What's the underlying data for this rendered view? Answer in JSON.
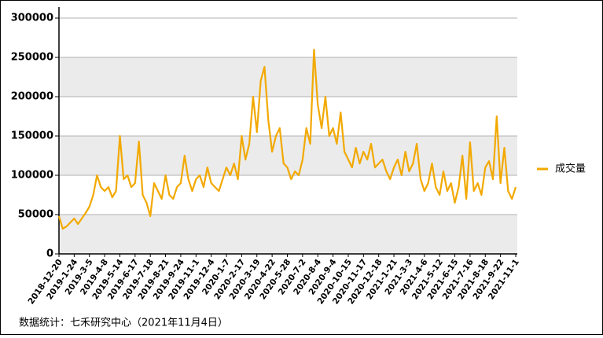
{
  "chart_data": {
    "type": "line",
    "categories": [
      "2018-12-20",
      null,
      null,
      null,
      "2019-1-24",
      null,
      null,
      null,
      "2019-3-5",
      null,
      null,
      null,
      "2019-4-8",
      null,
      null,
      null,
      "2019-5-14",
      null,
      null,
      null,
      "2019-6-17",
      null,
      null,
      null,
      "2019-7-18",
      null,
      null,
      null,
      "2019-8-21",
      null,
      null,
      null,
      "2019-9-24",
      null,
      null,
      null,
      "2019-11-1",
      null,
      null,
      null,
      "2019-12-4",
      null,
      null,
      null,
      "2020-1-7",
      null,
      null,
      null,
      "2020-2-17",
      null,
      null,
      null,
      "2020-3-19",
      null,
      null,
      null,
      "2020-4-22",
      null,
      null,
      null,
      "2020-5-28",
      null,
      null,
      null,
      "2020-7-2",
      null,
      null,
      null,
      "2020-8-4",
      null,
      null,
      null,
      "2020-9-4",
      null,
      null,
      null,
      "2020-10-15",
      null,
      null,
      null,
      "2020-11-17",
      null,
      null,
      null,
      "2020-12-18",
      null,
      null,
      null,
      "2021-1-21",
      null,
      null,
      null,
      "2021-3-3",
      null,
      null,
      null,
      "2021-4-6",
      null,
      null,
      null,
      "2021-5-12",
      null,
      null,
      null,
      "2021-6-15",
      null,
      null,
      null,
      "2021-7-16",
      null,
      null,
      null,
      "2021-8-18",
      null,
      null,
      null,
      "2021-9-22",
      null,
      null,
      null,
      "2021-11-1"
    ],
    "series": [
      {
        "name": "成交量",
        "color": "#f2a900",
        "values": [
          48000,
          32000,
          35000,
          40000,
          45000,
          38000,
          45000,
          52000,
          60000,
          75000,
          100000,
          85000,
          80000,
          85000,
          72000,
          80000,
          150000,
          95000,
          100000,
          85000,
          90000,
          143000,
          75000,
          65000,
          48000,
          90000,
          80000,
          70000,
          100000,
          75000,
          70000,
          85000,
          90000,
          125000,
          95000,
          80000,
          95000,
          100000,
          85000,
          110000,
          90000,
          85000,
          80000,
          95000,
          110000,
          100000,
          115000,
          95000,
          150000,
          120000,
          140000,
          200000,
          155000,
          220000,
          238000,
          170000,
          130000,
          150000,
          160000,
          115000,
          110000,
          95000,
          105000,
          100000,
          120000,
          160000,
          140000,
          260000,
          190000,
          160000,
          200000,
          150000,
          160000,
          140000,
          180000,
          130000,
          120000,
          110000,
          135000,
          115000,
          130000,
          120000,
          140000,
          110000,
          115000,
          120000,
          105000,
          95000,
          110000,
          120000,
          100000,
          130000,
          105000,
          115000,
          140000,
          95000,
          80000,
          90000,
          115000,
          85000,
          75000,
          105000,
          80000,
          90000,
          65000,
          85000,
          125000,
          70000,
          142000,
          80000,
          90000,
          75000,
          110000,
          118000,
          95000,
          175000,
          90000,
          135000,
          80000,
          70000,
          85000
        ]
      }
    ],
    "ylim": [
      0,
      300000
    ],
    "yticks": [
      0,
      50000,
      100000,
      150000,
      200000,
      250000,
      300000
    ],
    "grid": true,
    "legend": "right",
    "source": "数据统计：七禾研究中心（2021年11月4日）"
  }
}
